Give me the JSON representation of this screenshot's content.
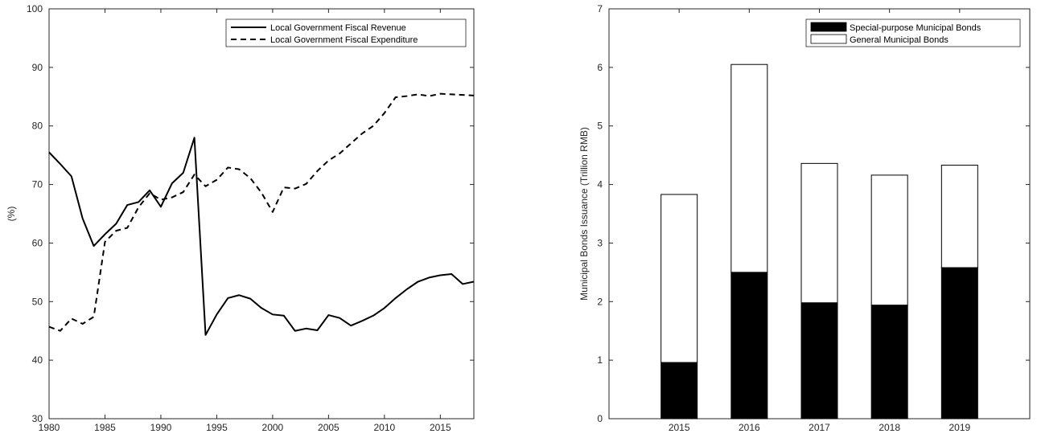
{
  "chart_data": [
    {
      "type": "line",
      "title": "",
      "xlabel": "",
      "ylabel": "(%)",
      "xlim": [
        1980,
        2018
      ],
      "ylim": [
        30,
        100
      ],
      "xticks": [
        1980,
        1985,
        1990,
        1995,
        2000,
        2005,
        2010,
        2015
      ],
      "yticks": [
        30,
        40,
        50,
        60,
        70,
        80,
        90,
        100
      ],
      "grid": false,
      "legend": "top-right",
      "series": [
        {
          "name": "Local Government Fiscal Revenue",
          "style": "solid",
          "color": "#000000",
          "x": [
            1980,
            1981,
            1982,
            1983,
            1984,
            1985,
            1986,
            1987,
            1988,
            1989,
            1990,
            1991,
            1992,
            1993,
            1994,
            1995,
            1996,
            1997,
            1998,
            1999,
            2000,
            2001,
            2002,
            2003,
            2004,
            2005,
            2006,
            2007,
            2008,
            2009,
            2010,
            2011,
            2012,
            2013,
            2014,
            2015,
            2016,
            2017,
            2018
          ],
          "y": [
            75.5,
            73.5,
            71.4,
            64.2,
            59.5,
            61.5,
            63.3,
            66.5,
            67.0,
            69.0,
            66.2,
            70.2,
            72.0,
            78.0,
            44.3,
            47.8,
            50.6,
            51.1,
            50.5,
            48.9,
            47.8,
            47.6,
            45.0,
            45.4,
            45.1,
            47.7,
            47.2,
            45.9,
            46.7,
            47.6,
            48.9,
            50.6,
            52.1,
            53.4,
            54.1,
            54.5,
            54.7,
            53.0,
            53.4
          ]
        },
        {
          "name": "Local Government Fiscal Expenditure",
          "style": "dashed",
          "color": "#000000",
          "x": [
            1980,
            1981,
            1982,
            1983,
            1984,
            1985,
            1986,
            1987,
            1988,
            1989,
            1990,
            1991,
            1992,
            1993,
            1994,
            1995,
            1996,
            1997,
            1998,
            1999,
            2000,
            2001,
            2002,
            2003,
            2004,
            2005,
            2006,
            2007,
            2008,
            2009,
            2010,
            2011,
            2012,
            2013,
            2014,
            2015,
            2016,
            2017,
            2018
          ],
          "y": [
            45.7,
            45.0,
            47.1,
            46.2,
            47.4,
            60.2,
            62.1,
            62.6,
            66.1,
            68.5,
            67.4,
            67.8,
            68.7,
            71.7,
            69.7,
            70.8,
            72.9,
            72.6,
            71.1,
            68.6,
            65.3,
            69.5,
            69.3,
            70.1,
            72.3,
            74.1,
            75.3,
            77.0,
            78.7,
            80.0,
            82.2,
            84.9,
            85.1,
            85.4,
            85.1,
            85.5,
            85.4,
            85.3,
            85.2
          ]
        }
      ]
    },
    {
      "type": "bar",
      "stacked": true,
      "title": "",
      "xlabel": "",
      "ylabel": "Municipal Bonds Issuance (Trillion RMB)",
      "categories": [
        "2015",
        "2016",
        "2017",
        "2018",
        "2019"
      ],
      "ylim": [
        0,
        7
      ],
      "yticks": [
        0,
        1,
        2,
        3,
        4,
        5,
        6,
        7
      ],
      "grid": false,
      "legend": "top-right",
      "series": [
        {
          "name": "Special-purpose Municipal Bonds",
          "color": "#000000",
          "values": [
            0.96,
            2.5,
            1.98,
            1.94,
            2.58
          ]
        },
        {
          "name": "General Municipal Bonds",
          "color": "#ffffff",
          "values": [
            2.87,
            3.55,
            2.38,
            2.22,
            1.75
          ]
        }
      ]
    }
  ]
}
